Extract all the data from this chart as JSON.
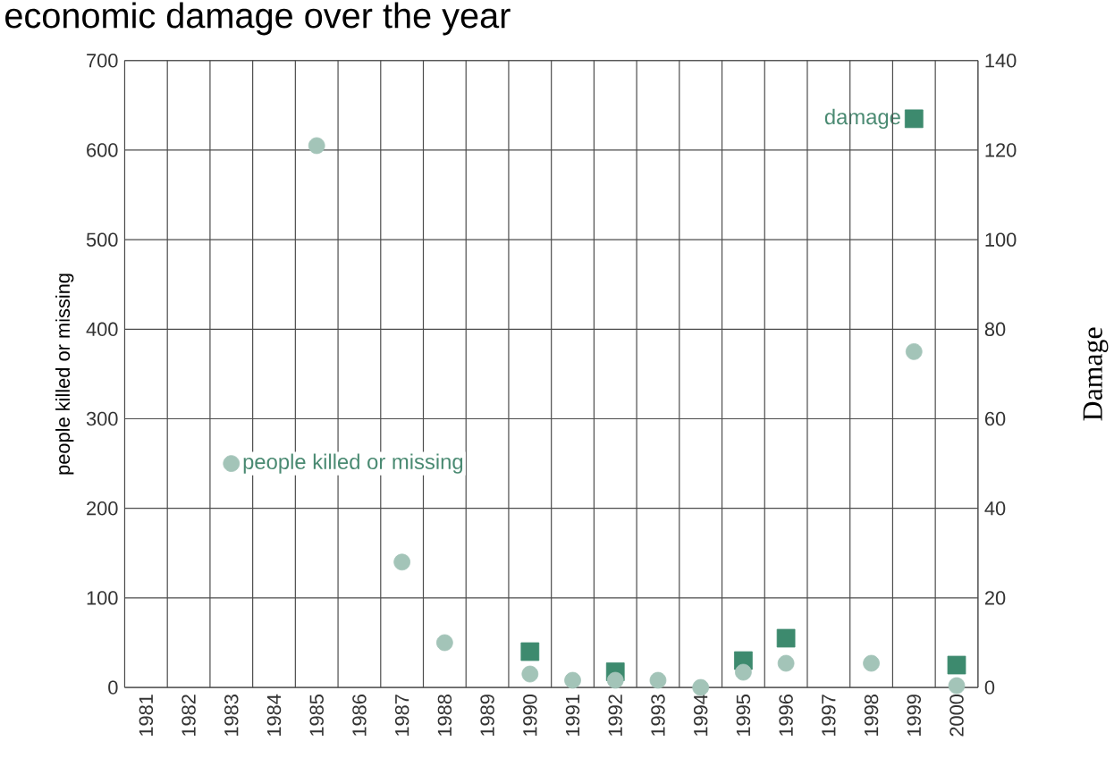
{
  "chart_data": {
    "type": "scatter",
    "title": "economic damage over the year",
    "ylabel": "people killed or missing",
    "y2label": "Damage",
    "categories": [
      "1981",
      "1982",
      "1983",
      "1984",
      "1985",
      "1986",
      "1987",
      "1988",
      "1989",
      "1990",
      "1991",
      "1992",
      "1993",
      "1994",
      "1995",
      "1996",
      "1997",
      "1998",
      "1999",
      "2000"
    ],
    "ylim": [
      0,
      700
    ],
    "yticks": [
      0,
      100,
      200,
      300,
      400,
      500,
      600,
      700
    ],
    "y2lim": [
      0,
      140
    ],
    "y2ticks": [
      0,
      20,
      40,
      60,
      80,
      100,
      120,
      140
    ],
    "grid": true,
    "series": [
      {
        "name": "people killed or missing",
        "color": "#a3c4b8",
        "marker": "circle",
        "values": [
          null,
          null,
          250,
          null,
          605,
          null,
          140,
          50,
          null,
          15,
          8,
          8,
          8,
          0,
          17,
          27,
          null,
          27,
          375,
          2
        ]
      },
      {
        "name": "damage",
        "color": "#3d8a6e",
        "marker": "square",
        "axis": "y2",
        "values": [
          null,
          null,
          null,
          null,
          null,
          null,
          null,
          null,
          null,
          8,
          null,
          3.5,
          null,
          null,
          6,
          11,
          null,
          null,
          127,
          5
        ]
      }
    ]
  }
}
